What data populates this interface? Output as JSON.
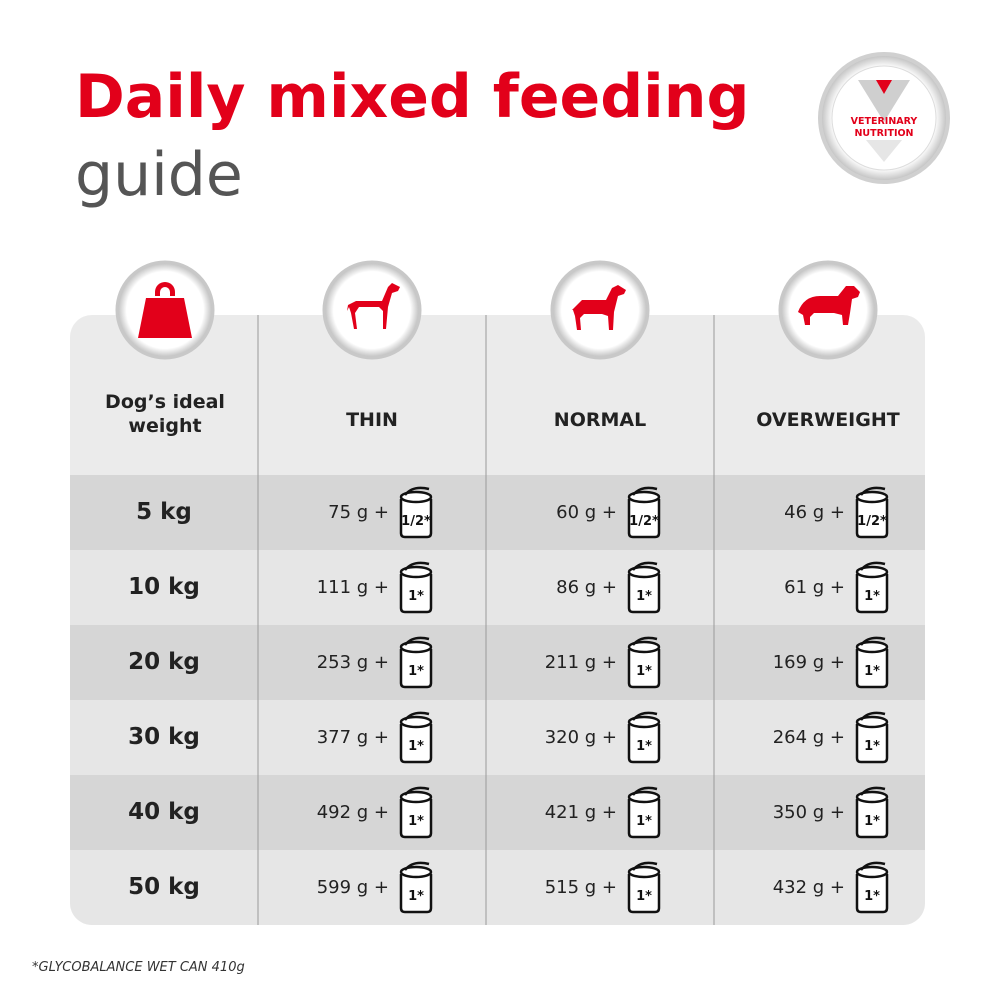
{
  "header": {
    "title": "Daily mixed feeding",
    "subtitle": "guide",
    "badge": [
      "VETERINARY",
      "NUTRITION"
    ]
  },
  "table": {
    "columns": [
      "Dog’s ideal weight",
      "THIN",
      "NORMAL",
      "OVERWEIGHT"
    ],
    "rows": [
      {
        "weight": "5 kg",
        "cells": [
          {
            "amount": "75 g +",
            "can": "1/2*"
          },
          {
            "amount": "60 g +",
            "can": "1/2*"
          },
          {
            "amount": "46 g +",
            "can": "1/2*"
          }
        ]
      },
      {
        "weight": "10 kg",
        "cells": [
          {
            "amount": "111 g +",
            "can": "1*"
          },
          {
            "amount": "86 g +",
            "can": "1*"
          },
          {
            "amount": "61 g +",
            "can": "1*"
          }
        ]
      },
      {
        "weight": "20 kg",
        "cells": [
          {
            "amount": "253 g +",
            "can": "1*"
          },
          {
            "amount": "211 g +",
            "can": "1*"
          },
          {
            "amount": "169 g +",
            "can": "1*"
          }
        ]
      },
      {
        "weight": "30 kg",
        "cells": [
          {
            "amount": "377 g +",
            "can": "1*"
          },
          {
            "amount": "320 g +",
            "can": "1*"
          },
          {
            "amount": "264 g +",
            "can": "1*"
          }
        ]
      },
      {
        "weight": "40 kg",
        "cells": [
          {
            "amount": "492 g +",
            "can": "1*"
          },
          {
            "amount": "421 g +",
            "can": "1*"
          },
          {
            "amount": "350 g +",
            "can": "1*"
          }
        ]
      },
      {
        "weight": "50 kg",
        "cells": [
          {
            "amount": "599 g +",
            "can": "1*"
          },
          {
            "amount": "515 g +",
            "can": "1*"
          },
          {
            "amount": "432 g +",
            "can": "1*"
          }
        ]
      }
    ]
  },
  "footnote": "*GLYCOBALANCE WET CAN 410g"
}
